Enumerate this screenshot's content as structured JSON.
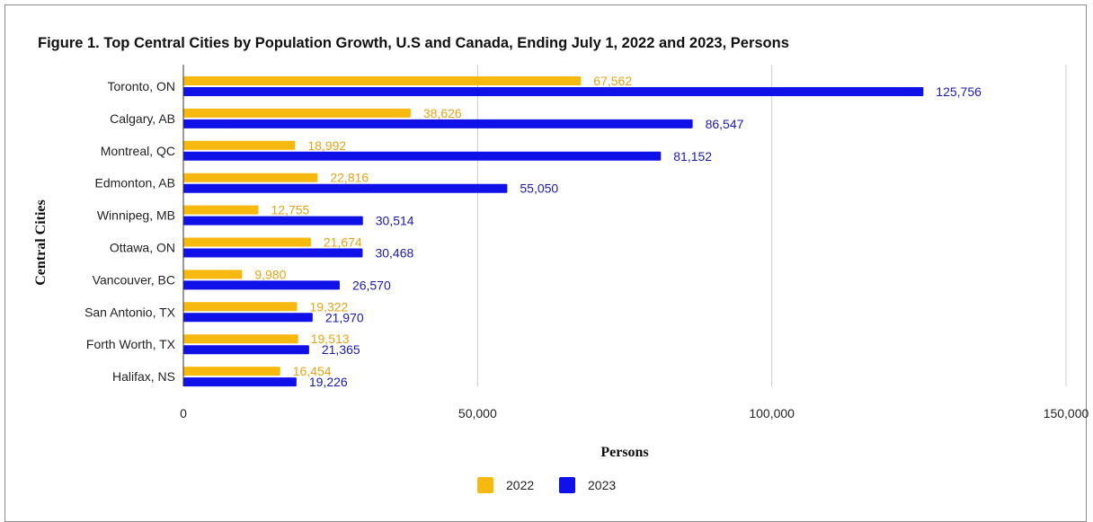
{
  "chart_data": {
    "type": "bar",
    "orientation": "horizontal",
    "title": "Figure 1. Top Central Cities by Population Growth, U.S and Canada, Ending July 1, 2022 and 2023, Persons",
    "xlabel": "Persons",
    "ylabel": "Central Cities",
    "categories": [
      "Toronto, ON",
      "Calgary, AB",
      "Montreal, QC",
      "Edmonton, AB",
      "Winnipeg, MB",
      "Ottawa, ON",
      "Vancouver, BC",
      "San Antonio, TX",
      "Forth Worth, TX",
      "Halifax, NS"
    ],
    "series": [
      {
        "name": "2022",
        "color": "#f7b90f",
        "values": [
          67562,
          38626,
          18992,
          22816,
          12755,
          21674,
          9980,
          19322,
          19513,
          16454
        ],
        "labels": [
          "67,562",
          "38,626",
          "18,992",
          "22,816",
          "12,755",
          "21,674",
          "9,980",
          "19,322",
          "19,513",
          "16,454"
        ]
      },
      {
        "name": "2023",
        "color": "#1010e8",
        "values": [
          125756,
          86547,
          81152,
          55050,
          30514,
          30468,
          26570,
          21970,
          21365,
          19226
        ],
        "labels": [
          "125,756",
          "86,547",
          "81,152",
          "55,050",
          "30,514",
          "30,468",
          "26,570",
          "21,970",
          "21,365",
          "19,226"
        ]
      }
    ],
    "xlim": [
      0,
      150000
    ],
    "xticks": [
      0,
      50000,
      100000,
      150000
    ],
    "xtick_labels": [
      "0",
      "50,000",
      "100,000",
      "150,000"
    ],
    "grid": "vertical",
    "legend_position": "bottom-center",
    "label_colors": {
      "2022": "#e8a513",
      "2023": "#1a1ab4"
    }
  }
}
